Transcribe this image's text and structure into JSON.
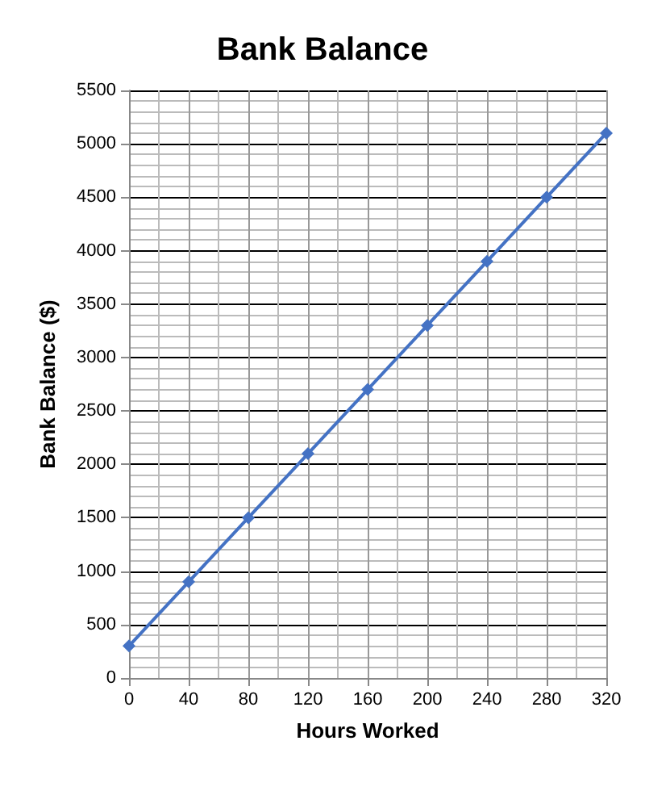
{
  "chart_data": {
    "type": "line",
    "title": "Bank Balance",
    "xlabel": "Hours Worked",
    "ylabel": "Bank Balance ($)",
    "x": [
      0,
      40,
      80,
      120,
      160,
      200,
      240,
      280,
      320
    ],
    "series": [
      {
        "color": "#4472c4",
        "values": [
          300,
          900,
          1500,
          2100,
          2700,
          3300,
          3900,
          4500,
          5100
        ]
      }
    ],
    "xlim": [
      0,
      320
    ],
    "xticks": [
      0,
      40,
      80,
      120,
      160,
      200,
      240,
      280,
      320
    ],
    "ylim": [
      0,
      5500
    ],
    "yticks": [
      0,
      500,
      1000,
      1500,
      2000,
      2500,
      3000,
      3500,
      4000,
      4500,
      5000,
      5500
    ],
    "grid": true,
    "marker": "diamond",
    "line_style": "solid"
  }
}
